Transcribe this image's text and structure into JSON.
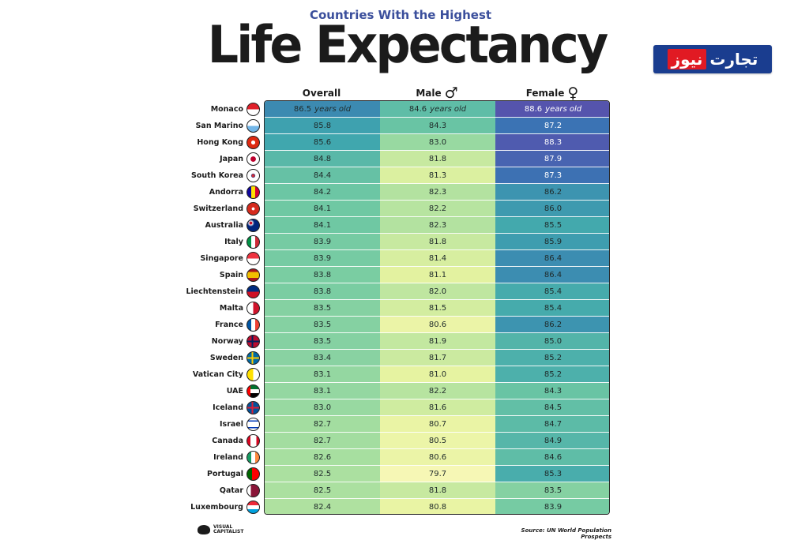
{
  "header": {
    "subtitle": "Countries With the Highest",
    "title": "Life Expectancy"
  },
  "logo": {
    "part_red": "نیوز",
    "part_white": "تجارت"
  },
  "columns": [
    {
      "label": "Overall",
      "symbol": ""
    },
    {
      "label": "Male",
      "symbol": "♂"
    },
    {
      "label": "Female",
      "symbol": "♀"
    }
  ],
  "unit_label": "years old",
  "rows": [
    {
      "country": "Monaco",
      "flag": "monaco-flag-icon",
      "overall": "86.5",
      "male": "84.6",
      "female": "88.6"
    },
    {
      "country": "San Marino",
      "flag": "san-marino-flag-icon",
      "overall": "85.8",
      "male": "84.3",
      "female": "87.2"
    },
    {
      "country": "Hong Kong",
      "flag": "hong-kong-flag-icon",
      "overall": "85.6",
      "male": "83.0",
      "female": "88.3"
    },
    {
      "country": "Japan",
      "flag": "japan-flag-icon",
      "overall": "84.8",
      "male": "81.8",
      "female": "87.9"
    },
    {
      "country": "South Korea",
      "flag": "south-korea-flag-icon",
      "overall": "84.4",
      "male": "81.3",
      "female": "87.3"
    },
    {
      "country": "Andorra",
      "flag": "andorra-flag-icon",
      "overall": "84.2",
      "male": "82.3",
      "female": "86.2"
    },
    {
      "country": "Switzerland",
      "flag": "switzerland-flag-icon",
      "overall": "84.1",
      "male": "82.2",
      "female": "86.0"
    },
    {
      "country": "Australia",
      "flag": "australia-flag-icon",
      "overall": "84.1",
      "male": "82.3",
      "female": "85.5"
    },
    {
      "country": "Italy",
      "flag": "italy-flag-icon",
      "overall": "83.9",
      "male": "81.8",
      "female": "85.9"
    },
    {
      "country": "Singapore",
      "flag": "singapore-flag-icon",
      "overall": "83.9",
      "male": "81.4",
      "female": "86.4"
    },
    {
      "country": "Spain",
      "flag": "spain-flag-icon",
      "overall": "83.8",
      "male": "81.1",
      "female": "86.4"
    },
    {
      "country": "Liechtenstein",
      "flag": "liechtenstein-flag-icon",
      "overall": "83.8",
      "male": "82.0",
      "female": "85.4"
    },
    {
      "country": "Malta",
      "flag": "malta-flag-icon",
      "overall": "83.5",
      "male": "81.5",
      "female": "85.4"
    },
    {
      "country": "France",
      "flag": "france-flag-icon",
      "overall": "83.5",
      "male": "80.6",
      "female": "86.2"
    },
    {
      "country": "Norway",
      "flag": "norway-flag-icon",
      "overall": "83.5",
      "male": "81.9",
      "female": "85.0"
    },
    {
      "country": "Sweden",
      "flag": "sweden-flag-icon",
      "overall": "83.4",
      "male": "81.7",
      "female": "85.2"
    },
    {
      "country": "Vatican City",
      "flag": "vatican-city-flag-icon",
      "overall": "83.1",
      "male": "81.0",
      "female": "85.2"
    },
    {
      "country": "UAE",
      "flag": "uae-flag-icon",
      "overall": "83.1",
      "male": "82.2",
      "female": "84.3"
    },
    {
      "country": "Iceland",
      "flag": "iceland-flag-icon",
      "overall": "83.0",
      "male": "81.6",
      "female": "84.5"
    },
    {
      "country": "Israel",
      "flag": "israel-flag-icon",
      "overall": "82.7",
      "male": "80.7",
      "female": "84.7"
    },
    {
      "country": "Canada",
      "flag": "canada-flag-icon",
      "overall": "82.7",
      "male": "80.5",
      "female": "84.9"
    },
    {
      "country": "Ireland",
      "flag": "ireland-flag-icon",
      "overall": "82.6",
      "male": "80.6",
      "female": "84.6"
    },
    {
      "country": "Portugal",
      "flag": "portugal-flag-icon",
      "overall": "82.5",
      "male": "79.7",
      "female": "85.3"
    },
    {
      "country": "Qatar",
      "flag": "qatar-flag-icon",
      "overall": "82.5",
      "male": "81.8",
      "female": "83.5"
    },
    {
      "country": "Luxembourg",
      "flag": "luxembourg-flag-icon",
      "overall": "82.4",
      "male": "80.8",
      "female": "83.9"
    }
  ],
  "chart_data": {
    "type": "table",
    "title": "Life Expectancy",
    "subtitle": "Countries With the Highest",
    "columns": [
      "Overall",
      "Male",
      "Female"
    ],
    "categories": [
      "Monaco",
      "San Marino",
      "Hong Kong",
      "Japan",
      "South Korea",
      "Andorra",
      "Switzerland",
      "Australia",
      "Italy",
      "Singapore",
      "Spain",
      "Liechtenstein",
      "Malta",
      "France",
      "Norway",
      "Sweden",
      "Vatican City",
      "UAE",
      "Iceland",
      "Israel",
      "Canada",
      "Ireland",
      "Portugal",
      "Qatar",
      "Luxembourg"
    ],
    "series": [
      {
        "name": "Overall",
        "values": [
          86.5,
          85.8,
          85.6,
          84.8,
          84.4,
          84.2,
          84.1,
          84.1,
          83.9,
          83.9,
          83.8,
          83.8,
          83.5,
          83.5,
          83.5,
          83.4,
          83.1,
          83.1,
          83.0,
          82.7,
          82.7,
          82.6,
          82.5,
          82.5,
          82.4
        ]
      },
      {
        "name": "Male",
        "values": [
          84.6,
          84.3,
          83.0,
          81.8,
          81.3,
          82.3,
          82.2,
          82.3,
          81.8,
          81.4,
          81.1,
          82.0,
          81.5,
          80.6,
          81.9,
          81.7,
          81.0,
          82.2,
          81.6,
          80.7,
          80.5,
          80.6,
          79.7,
          81.8,
          80.8
        ]
      },
      {
        "name": "Female",
        "values": [
          88.6,
          87.2,
          88.3,
          87.9,
          87.3,
          86.2,
          86.0,
          85.5,
          85.9,
          86.4,
          86.4,
          85.4,
          85.4,
          86.2,
          85.0,
          85.2,
          85.2,
          84.3,
          84.5,
          84.7,
          84.9,
          84.6,
          85.3,
          83.5,
          83.9
        ]
      }
    ],
    "unit": "years old",
    "color_scale": [
      "#f8f8b8",
      "#e6f3a0",
      "#a8dfa0",
      "#6fc8a3",
      "#3fa6ae",
      "#3a74b4",
      "#5752ad"
    ]
  },
  "footer": {
    "brand_line1": "VISUAL",
    "brand_line2": "CAPITALIST",
    "source": "Source: UN World Population Prospects"
  }
}
